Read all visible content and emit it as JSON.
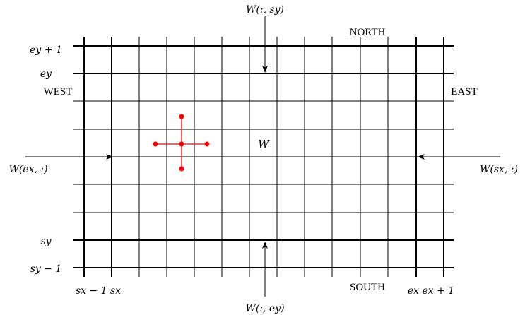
{
  "directions": {
    "north": "NORTH",
    "south": "SOUTH",
    "west": "WEST",
    "east": "EAST"
  },
  "interior_label": "W",
  "arrow_labels": {
    "top": "W(:, sy)",
    "bottom": "W(:, ey)",
    "left": "W(ex, :)",
    "right": "W(sx, :)"
  },
  "row_labels": {
    "ey_plus_1": "ey + 1",
    "ey": "ey",
    "sy": "sy",
    "sy_minus_1": "sy − 1"
  },
  "col_labels": {
    "sx_minus_1_sx": "sx − 1 sx",
    "ex_ex_plus_1": "ex ex + 1"
  },
  "colors": {
    "grid": "#000000",
    "stencil": "#ff0000"
  }
}
